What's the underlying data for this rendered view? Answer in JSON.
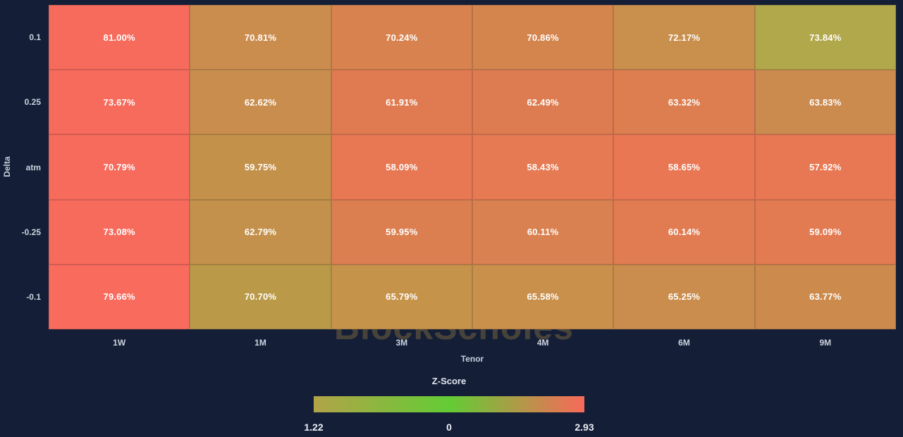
{
  "colors": {
    "background": "#141f37",
    "cell_text": "#ffffff",
    "tick_text": "#ccd2de",
    "axis_title_text": "#c8cfdc",
    "legend_title_text": "#e2e6ef",
    "legend_tick_text": "#e9edf5",
    "watermark_text": "#48433a"
  },
  "watermark": "BlockScholes",
  "chart_data": {
    "type": "heatmap",
    "xlabel": "Tenor",
    "ylabel": "Delta",
    "x_categories": [
      "1W",
      "1M",
      "3M",
      "4M",
      "6M",
      "9M"
    ],
    "y_categories": [
      "0.1",
      "0.25",
      "atm",
      "-0.25",
      "-0.1"
    ],
    "values": [
      [
        81.0,
        70.81,
        70.24,
        70.86,
        72.17,
        73.84
      ],
      [
        73.67,
        62.62,
        61.91,
        62.49,
        63.32,
        63.83
      ],
      [
        70.79,
        59.75,
        58.09,
        58.43,
        58.65,
        57.92
      ],
      [
        73.08,
        62.79,
        59.95,
        60.11,
        60.14,
        59.09
      ],
      [
        79.66,
        70.7,
        65.79,
        65.58,
        65.25,
        63.77
      ]
    ],
    "value_suffix": "%",
    "cell_colors": [
      [
        "#f76b5c",
        "#cb8d4e",
        "#d8834f",
        "#d4854e",
        "#c98f4c",
        "#b1a74b"
      ],
      [
        "#f76b5c",
        "#c98e4e",
        "#e07b51",
        "#de7c51",
        "#dc7e50",
        "#cc8b4e"
      ],
      [
        "#f76b5c",
        "#c4914a",
        "#e87853",
        "#e57a53",
        "#ea7754",
        "#e87853"
      ],
      [
        "#f76b5c",
        "#c3914b",
        "#dc7f50",
        "#d98150",
        "#e17c52",
        "#e37b52"
      ],
      [
        "#f86b5d",
        "#ba9a48",
        "#c6934b",
        "#c9904c",
        "#cb8d4d",
        "#cc8b4d"
      ]
    ],
    "colorbar": {
      "title": "Z-Score",
      "min_label": "1.22",
      "mid_label": "0",
      "max_label": "2.93",
      "gradient": [
        "#b2a348",
        "#63cc35",
        "#f8695a"
      ]
    },
    "legend_position": "bottom-center",
    "grid": false
  }
}
